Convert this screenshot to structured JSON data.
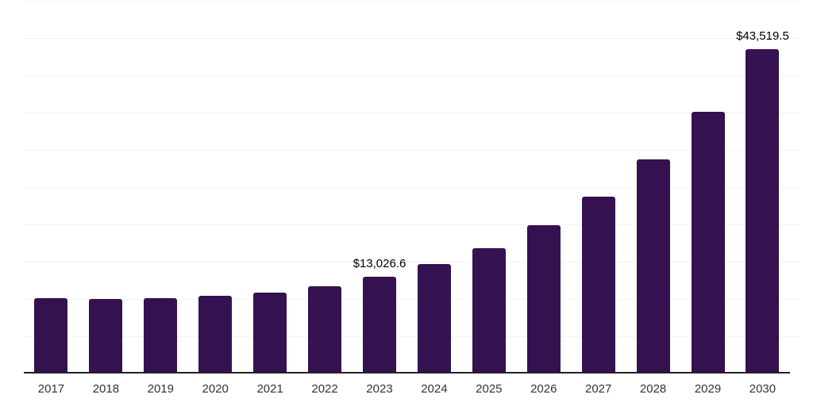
{
  "chart_data": {
    "type": "bar",
    "title": "",
    "xlabel": "",
    "ylabel": "",
    "categories": [
      "2017",
      "2018",
      "2019",
      "2020",
      "2021",
      "2022",
      "2023",
      "2024",
      "2025",
      "2026",
      "2027",
      "2028",
      "2029",
      "2030"
    ],
    "values": [
      10150,
      10000,
      10100,
      10450,
      10850,
      11700,
      13026.6,
      14700,
      16850,
      19850,
      23750,
      28750,
      35100,
      43519.5
    ],
    "data_labels": {
      "2023": "$13,026.6",
      "2030": "$43,519.5"
    },
    "ylim": [
      0,
      50000
    ],
    "gridline_step": 5000,
    "grid": true,
    "y_axis_tick_labels_visible": false,
    "legend": "none",
    "colors": {
      "bar": "#341250",
      "gridline": "#f2f2f2",
      "axis_line": "#212121",
      "x_tick_label": "#333333",
      "data_label": "#000000",
      "background": "#ffffff"
    }
  }
}
